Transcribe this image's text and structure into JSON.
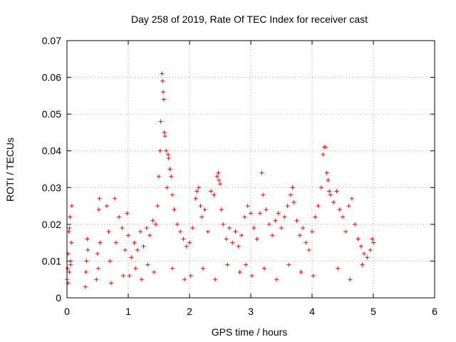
{
  "chart_data": {
    "type": "scatter",
    "title": "Day 258 of 2019, Rate Of TEC Index for receiver cast",
    "xlabel": "GPS time / hours",
    "ylabel": "ROTI / TECUs",
    "xlim": [
      0,
      6
    ],
    "ylim": [
      0,
      0.07
    ],
    "xticks": [
      "0",
      "1",
      "2",
      "3",
      "4",
      "5",
      "6"
    ],
    "yticks": [
      "0",
      "0.01",
      "0.02",
      "0.03",
      "0.04",
      "0.05",
      "0.06",
      "0.07"
    ],
    "grid": true,
    "marker": "+",
    "color": "#ff0000",
    "series": [
      {
        "name": "ROTI",
        "points": [
          [
            0.0,
            0.005
          ],
          [
            0.01,
            0.008
          ],
          [
            0.02,
            0.012
          ],
          [
            0.03,
            0.018
          ],
          [
            0.04,
            0.019
          ],
          [
            0.05,
            0.022
          ],
          [
            0.06,
            0.01
          ],
          [
            0.07,
            0.015
          ],
          [
            0.08,
            0.025
          ],
          [
            0.02,
            0.004
          ],
          [
            0.04,
            0.007
          ],
          [
            0.06,
            0.009
          ],
          [
            0.3,
            0.003
          ],
          [
            0.32,
            0.01
          ],
          [
            0.34,
            0.013
          ],
          [
            0.31,
            0.007
          ],
          [
            0.33,
            0.016
          ],
          [
            0.48,
            0.005
          ],
          [
            0.5,
            0.012
          ],
          [
            0.52,
            0.024
          ],
          [
            0.53,
            0.027
          ],
          [
            0.54,
            0.015
          ],
          [
            0.51,
            0.008
          ],
          [
            0.65,
            0.025
          ],
          [
            0.68,
            0.018
          ],
          [
            0.7,
            0.01
          ],
          [
            0.78,
            0.027
          ],
          [
            0.8,
            0.015
          ],
          [
            0.85,
            0.022
          ],
          [
            0.9,
            0.019
          ],
          [
            0.95,
            0.013
          ],
          [
            0.98,
            0.023
          ],
          [
            1.0,
            0.017
          ],
          [
            1.05,
            0.011
          ],
          [
            1.1,
            0.015
          ],
          [
            1.15,
            0.013
          ],
          [
            1.2,
            0.018
          ],
          [
            1.25,
            0.014
          ],
          [
            1.3,
            0.019
          ],
          [
            1.35,
            0.017
          ],
          [
            1.4,
            0.021
          ],
          [
            1.45,
            0.02
          ],
          [
            1.48,
            0.025
          ],
          [
            1.5,
            0.033
          ],
          [
            1.52,
            0.04
          ],
          [
            1.53,
            0.048
          ],
          [
            1.55,
            0.061
          ],
          [
            1.56,
            0.059
          ],
          [
            1.57,
            0.056
          ],
          [
            1.58,
            0.054
          ],
          [
            1.59,
            0.045
          ],
          [
            1.6,
            0.044
          ],
          [
            1.62,
            0.04
          ],
          [
            1.63,
            0.03
          ],
          [
            1.65,
            0.039
          ],
          [
            1.66,
            0.038
          ],
          [
            1.68,
            0.035
          ],
          [
            1.7,
            0.033
          ],
          [
            1.72,
            0.028
          ],
          [
            1.75,
            0.024
          ],
          [
            1.8,
            0.02
          ],
          [
            1.85,
            0.018
          ],
          [
            1.9,
            0.016
          ],
          [
            1.95,
            0.014
          ],
          [
            2.0,
            0.015
          ],
          [
            2.05,
            0.019
          ],
          [
            2.1,
            0.027
          ],
          [
            2.12,
            0.029
          ],
          [
            2.15,
            0.03
          ],
          [
            2.18,
            0.025
          ],
          [
            2.2,
            0.022
          ],
          [
            2.25,
            0.024
          ],
          [
            2.3,
            0.018
          ],
          [
            2.35,
            0.029
          ],
          [
            2.4,
            0.028
          ],
          [
            2.45,
            0.033
          ],
          [
            2.47,
            0.034
          ],
          [
            2.48,
            0.032
          ],
          [
            2.5,
            0.031
          ],
          [
            2.52,
            0.024
          ],
          [
            2.55,
            0.02
          ],
          [
            2.6,
            0.016
          ],
          [
            2.65,
            0.019
          ],
          [
            2.7,
            0.015
          ],
          [
            2.75,
            0.018
          ],
          [
            2.8,
            0.014
          ],
          [
            2.85,
            0.017
          ],
          [
            2.9,
            0.022
          ],
          [
            2.95,
            0.025
          ],
          [
            3.0,
            0.023
          ],
          [
            3.05,
            0.019
          ],
          [
            3.1,
            0.016
          ],
          [
            3.15,
            0.023
          ],
          [
            3.18,
            0.034
          ],
          [
            3.2,
            0.028
          ],
          [
            3.25,
            0.024
          ],
          [
            3.3,
            0.02
          ],
          [
            3.35,
            0.017
          ],
          [
            3.4,
            0.021
          ],
          [
            3.45,
            0.023
          ],
          [
            3.5,
            0.019
          ],
          [
            3.55,
            0.022
          ],
          [
            3.6,
            0.025
          ],
          [
            3.65,
            0.028
          ],
          [
            3.68,
            0.03
          ],
          [
            3.7,
            0.026
          ],
          [
            3.75,
            0.021
          ],
          [
            3.8,
            0.017
          ],
          [
            3.85,
            0.019
          ],
          [
            3.9,
            0.015
          ],
          [
            3.95,
            0.013
          ],
          [
            4.0,
            0.018
          ],
          [
            4.05,
            0.022
          ],
          [
            4.1,
            0.025
          ],
          [
            4.15,
            0.03
          ],
          [
            4.18,
            0.039
          ],
          [
            4.2,
            0.041
          ],
          [
            4.22,
            0.041
          ],
          [
            4.24,
            0.034
          ],
          [
            4.26,
            0.032
          ],
          [
            4.28,
            0.029
          ],
          [
            4.3,
            0.028
          ],
          [
            4.35,
            0.026
          ],
          [
            4.4,
            0.029
          ],
          [
            4.45,
            0.024
          ],
          [
            4.5,
            0.022
          ],
          [
            4.55,
            0.018
          ],
          [
            4.6,
            0.025
          ],
          [
            4.65,
            0.027
          ],
          [
            4.7,
            0.02
          ],
          [
            4.75,
            0.016
          ],
          [
            4.8,
            0.014
          ],
          [
            4.85,
            0.012
          ],
          [
            4.9,
            0.011
          ],
          [
            4.95,
            0.013
          ],
          [
            4.98,
            0.016
          ],
          [
            5.0,
            0.015
          ],
          [
            1.02,
            0.006
          ],
          [
            1.12,
            0.008
          ],
          [
            1.22,
            0.005
          ],
          [
            1.32,
            0.009
          ],
          [
            1.42,
            0.007
          ],
          [
            2.02,
            0.006
          ],
          [
            2.22,
            0.008
          ],
          [
            2.42,
            0.005
          ],
          [
            2.62,
            0.009
          ],
          [
            2.82,
            0.007
          ],
          [
            3.02,
            0.006
          ],
          [
            3.22,
            0.008
          ],
          [
            3.42,
            0.005
          ],
          [
            3.62,
            0.009
          ],
          [
            3.82,
            0.007
          ],
          [
            4.02,
            0.006
          ],
          [
            4.42,
            0.008
          ],
          [
            4.62,
            0.005
          ],
          [
            4.82,
            0.009
          ],
          [
            0.72,
            0.004
          ],
          [
            0.92,
            0.006
          ],
          [
            1.72,
            0.008
          ],
          [
            1.92,
            0.005
          ],
          [
            2.92,
            0.009
          ]
        ]
      }
    ]
  }
}
